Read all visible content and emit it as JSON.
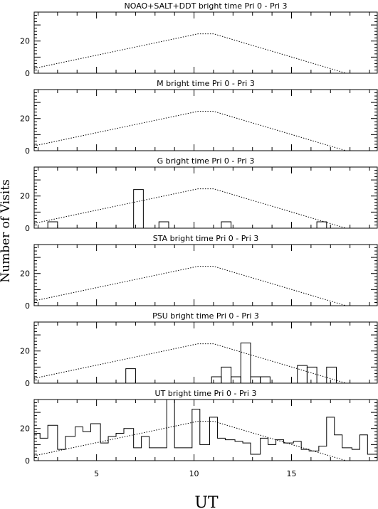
{
  "chart_data": {
    "type": "bar",
    "xlabel": "UT",
    "ylabel": "Number of Visits",
    "xlim": [
      1.8,
      19.4
    ],
    "ylim": [
      0,
      38
    ],
    "x_ticks": [
      5,
      10,
      15
    ],
    "y_ticks": [
      0,
      20
    ],
    "limit_curve": [
      [
        1.8,
        3
      ],
      [
        10.2,
        24.5
      ],
      [
        11.0,
        24.5
      ],
      [
        17.8,
        0
      ]
    ],
    "panels": [
      {
        "title": "NOAO+SALT+DDT    bright time Pri 0 - Pri 3",
        "bars": []
      },
      {
        "title": "M    bright time Pri 0 - Pri 3",
        "bars": []
      },
      {
        "title": "G    bright time Pri 0 - Pri 3",
        "bars": [
          [
            2.5,
            3.0,
            4
          ],
          [
            6.9,
            7.4,
            24
          ],
          [
            8.2,
            8.7,
            4
          ],
          [
            11.4,
            11.9,
            4
          ],
          [
            16.3,
            16.8,
            4
          ]
        ]
      },
      {
        "title": "STA    bright time Pri 0 - Pri 3",
        "bars": []
      },
      {
        "title": "PSU    bright time Pri 0 - Pri 3",
        "bars": [
          [
            6.5,
            7.0,
            9
          ],
          [
            10.9,
            11.4,
            4
          ],
          [
            11.4,
            11.9,
            10
          ],
          [
            11.9,
            12.4,
            4
          ],
          [
            12.4,
            12.9,
            25
          ],
          [
            12.9,
            13.4,
            4
          ],
          [
            13.4,
            13.9,
            4
          ],
          [
            15.3,
            15.8,
            11
          ],
          [
            15.8,
            16.3,
            10
          ],
          [
            16.8,
            17.3,
            10
          ]
        ]
      },
      {
        "title": "UT    bright time Pri 0 - Pri 3",
        "steps": [
          [
            1.8,
            17
          ],
          [
            2.1,
            14
          ],
          [
            2.5,
            22
          ],
          [
            3.0,
            7
          ],
          [
            3.4,
            15
          ],
          [
            3.9,
            21
          ],
          [
            4.3,
            18
          ],
          [
            4.7,
            23
          ],
          [
            5.2,
            11
          ],
          [
            5.6,
            15
          ],
          [
            6.0,
            17
          ],
          [
            6.4,
            20
          ],
          [
            6.9,
            8
          ],
          [
            7.3,
            15
          ],
          [
            7.7,
            8
          ],
          [
            8.2,
            8
          ],
          [
            8.6,
            38
          ],
          [
            9.0,
            8
          ],
          [
            9.5,
            8
          ],
          [
            9.9,
            32
          ],
          [
            10.3,
            10
          ],
          [
            10.8,
            27
          ],
          [
            11.2,
            14
          ],
          [
            11.6,
            13
          ],
          [
            12.1,
            12
          ],
          [
            12.5,
            11
          ],
          [
            12.9,
            4
          ],
          [
            13.4,
            14
          ],
          [
            13.8,
            10
          ],
          [
            14.2,
            13
          ],
          [
            14.6,
            11
          ],
          [
            15.1,
            12
          ],
          [
            15.5,
            7
          ],
          [
            15.9,
            6
          ],
          [
            16.4,
            9
          ],
          [
            16.8,
            27
          ],
          [
            17.2,
            16
          ],
          [
            17.6,
            8
          ],
          [
            18.1,
            7
          ],
          [
            18.5,
            16
          ],
          [
            18.9,
            4
          ],
          [
            19.4,
            4
          ]
        ]
      }
    ]
  }
}
